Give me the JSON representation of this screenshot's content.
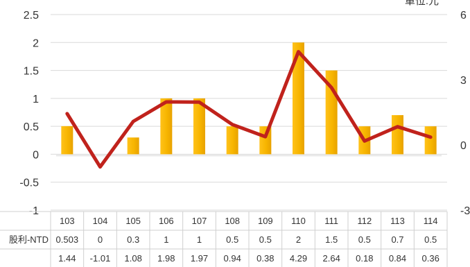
{
  "chart_data": {
    "type": "bar",
    "unit_label": "單位:元",
    "categories": [
      "103",
      "104",
      "105",
      "106",
      "107",
      "108",
      "109",
      "110",
      "111",
      "112",
      "113",
      "114"
    ],
    "series": [
      {
        "name": "股利-NTD",
        "type": "bar",
        "axis": "left",
        "color": "#F5B400",
        "values": [
          0.503,
          0,
          0.3,
          1,
          1,
          0.5,
          0.5,
          2,
          1.5,
          0.5,
          0.7,
          0.5
        ]
      },
      {
        "type": "line",
        "axis": "right",
        "color": "#C0221C",
        "values": [
          1.44,
          -1.01,
          1.08,
          1.98,
          1.97,
          0.94,
          0.38,
          4.29,
          2.64,
          0.18,
          0.84,
          0.36
        ]
      }
    ],
    "table": {
      "rows": [
        {
          "label": "股利-NTD",
          "values": [
            "0.503",
            "0",
            "0.3",
            "1",
            "1",
            "0.5",
            "0.5",
            "2",
            "1.5",
            "0.5",
            "0.7",
            "0.5"
          ]
        },
        {
          "label": "",
          "values": [
            "1.44",
            "-1.01",
            "1.08",
            "1.98",
            "1.97",
            "0.94",
            "0.38",
            "4.29",
            "2.64",
            "0.18",
            "0.84",
            "0.36"
          ]
        }
      ]
    },
    "y_left": {
      "min": -1,
      "max": 2.5,
      "ticks": [
        "2.5",
        "2",
        "1.5",
        "1",
        "0.5",
        "0",
        "-0.5",
        "-1"
      ]
    },
    "y_right": {
      "min": -3,
      "max": 6,
      "ticks": [
        "6",
        "3",
        "0",
        "-3"
      ]
    },
    "grid": true,
    "legend": "none"
  }
}
